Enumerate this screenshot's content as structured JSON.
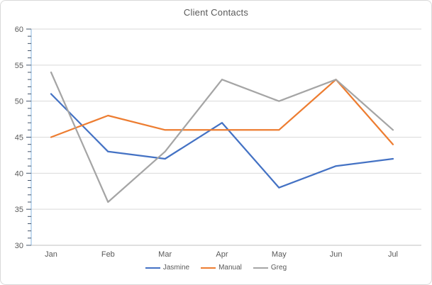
{
  "chart_data": {
    "type": "line",
    "title": "Client Contacts",
    "categories": [
      "Jan",
      "Feb",
      "Mar",
      "Apr",
      "May",
      "Jun",
      "Jul"
    ],
    "series": [
      {
        "name": "Jasmine",
        "color": "#4472c4",
        "values": [
          51,
          43,
          42,
          47,
          38,
          41,
          42
        ]
      },
      {
        "name": "Manual",
        "color": "#ed7d31",
        "values": [
          45,
          48,
          46,
          46,
          46,
          53,
          44
        ]
      },
      {
        "name": "Greg",
        "color": "#a5a5a5",
        "values": [
          54,
          36,
          43,
          53,
          50,
          53,
          46
        ]
      }
    ],
    "xlabel": "",
    "ylabel": "",
    "ylim": [
      30,
      60
    ],
    "ytick_step": 5,
    "yminor_step": 1,
    "grid": true,
    "legend_position": "bottom"
  },
  "styles": {
    "title_color": "#595959",
    "tick_label_color": "#595959",
    "gridline_color": "#d9d9d9",
    "x_axis_color": "#bfbfbf",
    "y_axis_color": "#9dc3e6",
    "y_tick_color": "#44546a",
    "frame_border_color": "#d9d9d9",
    "background": "#ffffff"
  }
}
